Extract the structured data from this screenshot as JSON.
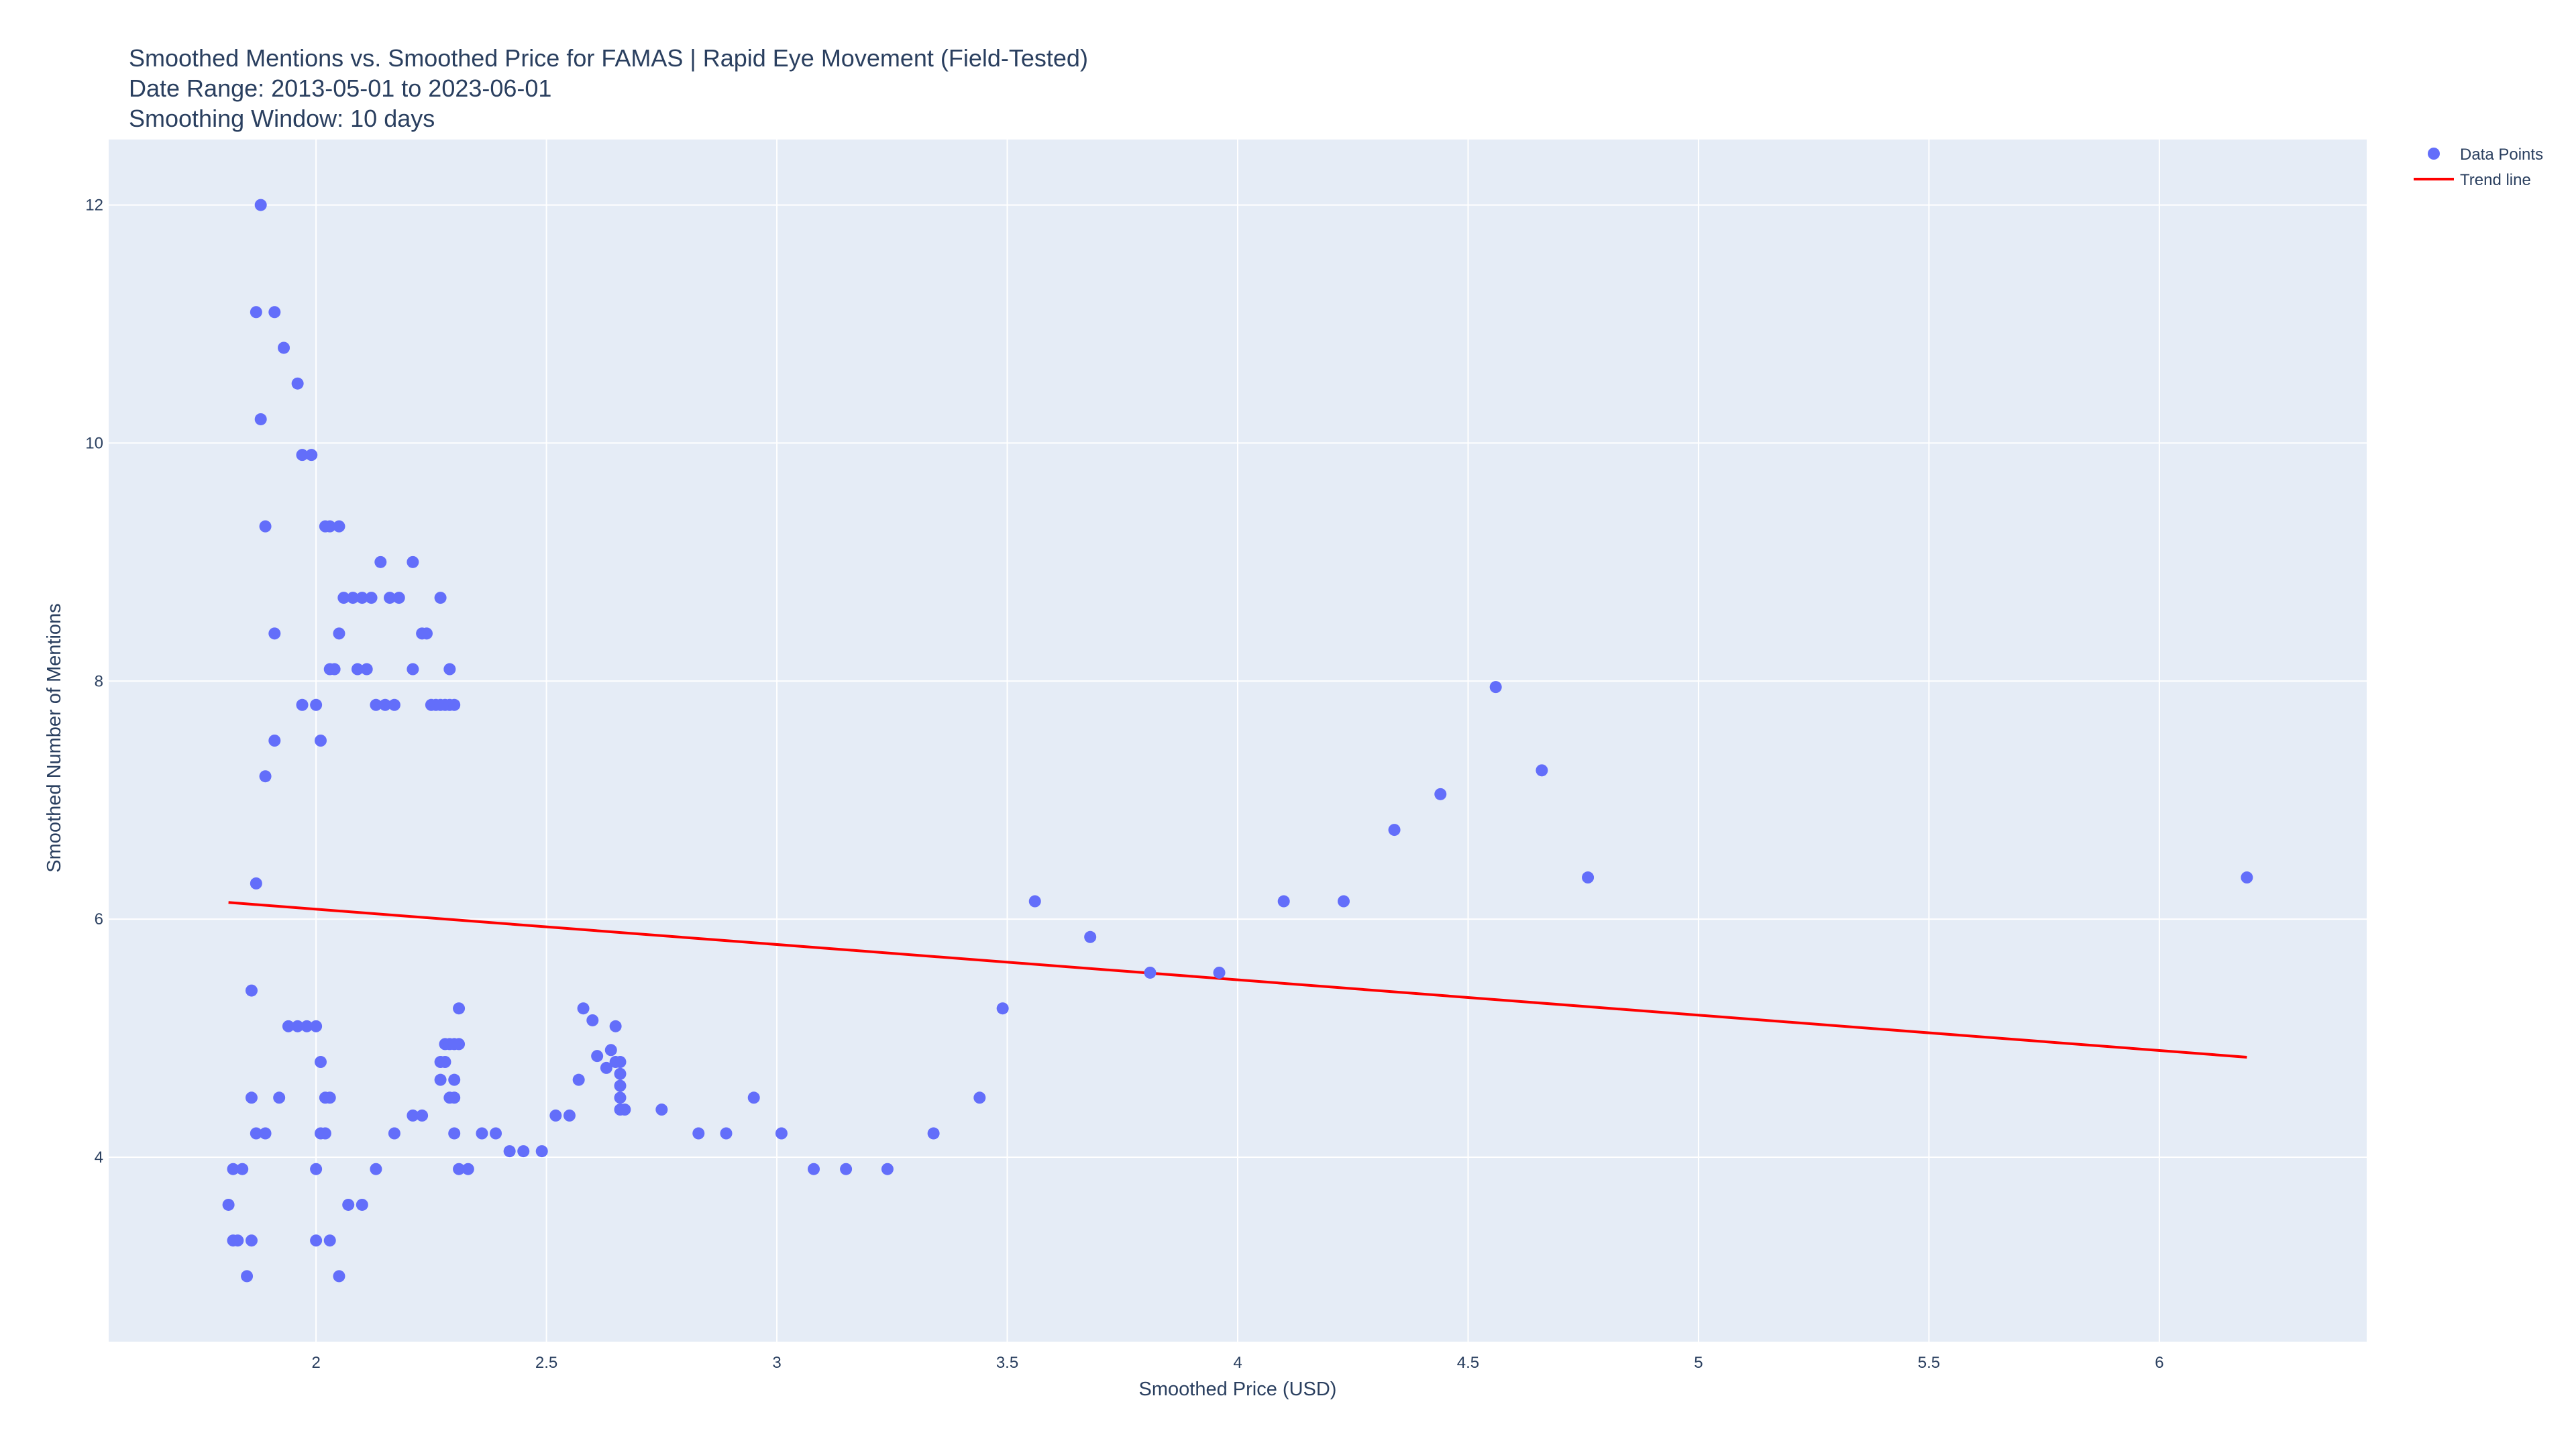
{
  "chart_data": {
    "type": "scatter",
    "title_lines": [
      "Smoothed Mentions vs. Smoothed Price for FAMAS | Rapid Eye Movement (Field-Tested)",
      "Date Range: 2013-05-01 to 2023-06-01",
      "Smoothing Window: 10 days"
    ],
    "xlabel": "Smoothed Price (USD)",
    "ylabel": "Smoothed Number of Mentions",
    "xlim": [
      1.55,
      6.45
    ],
    "ylim": [
      2.45,
      12.55
    ],
    "x_ticks": [
      2,
      2.5,
      3,
      3.5,
      4,
      4.5,
      5,
      5.5,
      6
    ],
    "x_tick_labels": [
      "2",
      "2.5",
      "3",
      "3.5",
      "4",
      "4.5",
      "5",
      "5.5",
      "6"
    ],
    "y_ticks": [
      4,
      6,
      8,
      10,
      12
    ],
    "y_tick_labels": [
      "4",
      "6",
      "8",
      "10",
      "12"
    ],
    "grid": true,
    "legend_position": "top-right",
    "colors": {
      "points": "#636efa",
      "trend": "#ff0000",
      "plot_bg": "#e5ecf6",
      "grid": "#ffffff"
    },
    "series": [
      {
        "name": "Data Points",
        "mode": "markers",
        "points": [
          [
            1.88,
            12.0
          ],
          [
            1.87,
            11.1
          ],
          [
            1.91,
            11.1
          ],
          [
            1.93,
            10.8
          ],
          [
            1.96,
            10.5
          ],
          [
            1.88,
            10.2
          ],
          [
            1.97,
            9.9
          ],
          [
            1.99,
            9.9
          ],
          [
            1.89,
            9.3
          ],
          [
            2.02,
            9.3
          ],
          [
            2.03,
            9.3
          ],
          [
            2.05,
            9.3
          ],
          [
            2.14,
            9.0
          ],
          [
            2.21,
            9.0
          ],
          [
            1.91,
            8.4
          ],
          [
            2.05,
            8.4
          ],
          [
            2.23,
            8.4
          ],
          [
            2.24,
            8.4
          ],
          [
            2.06,
            8.7
          ],
          [
            2.08,
            8.7
          ],
          [
            2.1,
            8.7
          ],
          [
            2.12,
            8.7
          ],
          [
            2.16,
            8.7
          ],
          [
            2.18,
            8.7
          ],
          [
            2.27,
            8.7
          ],
          [
            2.03,
            8.1
          ],
          [
            2.04,
            8.1
          ],
          [
            2.09,
            8.1
          ],
          [
            2.11,
            8.1
          ],
          [
            2.21,
            8.1
          ],
          [
            2.29,
            8.1
          ],
          [
            1.97,
            7.8
          ],
          [
            2.0,
            7.8
          ],
          [
            2.13,
            7.8
          ],
          [
            2.15,
            7.8
          ],
          [
            2.17,
            7.8
          ],
          [
            2.25,
            7.8
          ],
          [
            2.26,
            7.8
          ],
          [
            2.27,
            7.8
          ],
          [
            2.28,
            7.8
          ],
          [
            2.29,
            7.8
          ],
          [
            2.3,
            7.8
          ],
          [
            1.91,
            7.5
          ],
          [
            2.01,
            7.5
          ],
          [
            1.89,
            7.2
          ],
          [
            1.87,
            6.3
          ],
          [
            1.86,
            5.4
          ],
          [
            1.94,
            5.1
          ],
          [
            1.96,
            5.1
          ],
          [
            1.98,
            5.1
          ],
          [
            2.0,
            5.1
          ],
          [
            2.01,
            4.8
          ],
          [
            1.86,
            4.5
          ],
          [
            1.92,
            4.5
          ],
          [
            2.02,
            4.5
          ],
          [
            2.03,
            4.5
          ],
          [
            1.87,
            4.2
          ],
          [
            1.89,
            4.2
          ],
          [
            2.01,
            4.2
          ],
          [
            2.02,
            4.2
          ],
          [
            1.82,
            3.9
          ],
          [
            1.84,
            3.9
          ],
          [
            2.0,
            3.9
          ],
          [
            2.13,
            3.9
          ],
          [
            1.81,
            3.6
          ],
          [
            2.07,
            3.6
          ],
          [
            2.1,
            3.6
          ],
          [
            1.82,
            3.3
          ],
          [
            1.83,
            3.3
          ],
          [
            1.86,
            3.3
          ],
          [
            2.0,
            3.3
          ],
          [
            2.03,
            3.3
          ],
          [
            1.85,
            3.0
          ],
          [
            2.05,
            3.0
          ],
          [
            2.17,
            4.2
          ],
          [
            2.21,
            4.35
          ],
          [
            2.23,
            4.35
          ],
          [
            2.31,
            5.25
          ],
          [
            2.28,
            4.95
          ],
          [
            2.29,
            4.95
          ],
          [
            2.3,
            4.95
          ],
          [
            2.31,
            4.95
          ],
          [
            2.27,
            4.8
          ],
          [
            2.28,
            4.8
          ],
          [
            2.27,
            4.65
          ],
          [
            2.3,
            4.65
          ],
          [
            2.29,
            4.5
          ],
          [
            2.3,
            4.5
          ],
          [
            2.3,
            4.2
          ],
          [
            2.31,
            3.9
          ],
          [
            2.33,
            3.9
          ],
          [
            2.36,
            4.2
          ],
          [
            2.39,
            4.2
          ],
          [
            2.42,
            4.05
          ],
          [
            2.45,
            4.05
          ],
          [
            2.49,
            4.05
          ],
          [
            2.52,
            4.35
          ],
          [
            2.55,
            4.35
          ],
          [
            2.58,
            5.25
          ],
          [
            2.6,
            5.15
          ],
          [
            2.57,
            4.65
          ],
          [
            2.61,
            4.85
          ],
          [
            2.63,
            4.75
          ],
          [
            2.64,
            4.9
          ],
          [
            2.65,
            5.1
          ],
          [
            2.65,
            4.8
          ],
          [
            2.66,
            4.8
          ],
          [
            2.66,
            4.7
          ],
          [
            2.66,
            4.6
          ],
          [
            2.66,
            4.5
          ],
          [
            2.66,
            4.4
          ],
          [
            2.67,
            4.4
          ],
          [
            2.75,
            4.4
          ],
          [
            2.83,
            4.2
          ],
          [
            2.89,
            4.2
          ],
          [
            2.95,
            4.5
          ],
          [
            3.01,
            4.2
          ],
          [
            3.08,
            3.9
          ],
          [
            3.15,
            3.9
          ],
          [
            3.24,
            3.9
          ],
          [
            3.34,
            4.2
          ],
          [
            3.44,
            4.5
          ],
          [
            3.49,
            5.25
          ],
          [
            3.56,
            6.15
          ],
          [
            3.68,
            5.85
          ],
          [
            3.81,
            5.55
          ],
          [
            3.96,
            5.55
          ],
          [
            4.1,
            6.15
          ],
          [
            4.23,
            6.15
          ],
          [
            4.34,
            6.75
          ],
          [
            4.44,
            7.05
          ],
          [
            4.56,
            7.95
          ],
          [
            4.66,
            7.25
          ],
          [
            4.76,
            6.35
          ],
          [
            6.19,
            6.35
          ]
        ]
      },
      {
        "name": "Trend line",
        "mode": "lines",
        "points": [
          [
            1.81,
            6.14
          ],
          [
            6.19,
            4.84
          ]
        ]
      }
    ]
  }
}
